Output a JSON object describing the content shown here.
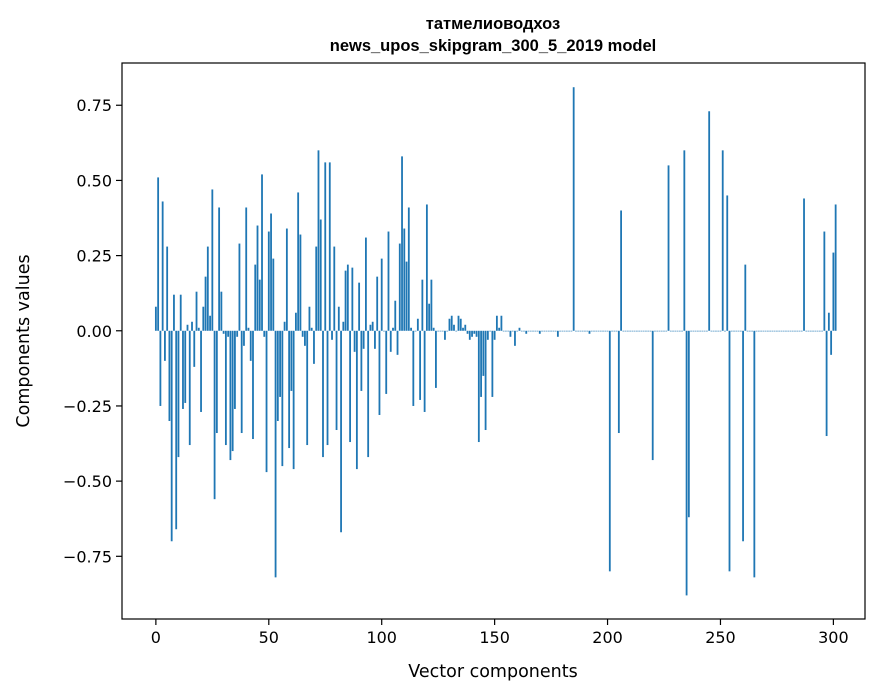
{
  "chart_data": {
    "type": "bar",
    "title_line1": "татмелиоводхоз",
    "title_line2": "news_upos_skipgram_300_5_2019 model",
    "xlabel": "Vector components",
    "ylabel": "Components values",
    "xlim": [
      -15,
      314
    ],
    "ylim": [
      -0.9585,
      0.8905
    ],
    "xticks": [
      0,
      50,
      100,
      150,
      200,
      250,
      300
    ],
    "xtick_labels": [
      "0",
      "50",
      "100",
      "150",
      "200",
      "250",
      "300"
    ],
    "yticks": [
      -0.75,
      -0.5,
      -0.25,
      0.0,
      0.25,
      0.5,
      0.75
    ],
    "ytick_labels": [
      "−0.75",
      "−0.50",
      "−0.25",
      "0.00",
      "0.25",
      "0.50",
      "0.75"
    ],
    "grid": false,
    "bar_color": "#1f77b4",
    "values": [
      0.08,
      0.51,
      -0.25,
      0.43,
      -0.1,
      0.28,
      -0.3,
      -0.7,
      0.12,
      -0.66,
      -0.42,
      0.12,
      -0.26,
      -0.24,
      0.02,
      -0.38,
      0.03,
      -0.12,
      0.13,
      0.01,
      -0.27,
      0.08,
      0.18,
      0.28,
      0.05,
      0.47,
      -0.56,
      -0.34,
      0.41,
      0.13,
      -0.01,
      -0.38,
      -0.02,
      -0.43,
      -0.4,
      -0.26,
      -0.02,
      0.29,
      -0.34,
      -0.05,
      0.41,
      0.01,
      -0.1,
      -0.36,
      0.22,
      0.35,
      0.17,
      0.52,
      -0.02,
      -0.47,
      0.33,
      0.39,
      0.24,
      -0.82,
      -0.3,
      -0.22,
      -0.45,
      0.03,
      0.34,
      -0.39,
      -0.2,
      -0.46,
      0.06,
      0.46,
      0.32,
      -0.02,
      -0.05,
      -0.38,
      0.08,
      0.01,
      -0.11,
      0.28,
      0.6,
      0.37,
      -0.42,
      0.56,
      -0.38,
      0.56,
      -0.03,
      0.28,
      -0.33,
      0.08,
      -0.67,
      0.03,
      0.2,
      0.22,
      -0.37,
      0.21,
      -0.07,
      -0.46,
      0.16,
      -0.2,
      -0.06,
      0.31,
      -0.42,
      0.02,
      0.03,
      -0.06,
      0.18,
      -0.28,
      0.24,
      0.0,
      -0.21,
      0.33,
      -0.07,
      0.01,
      0.1,
      -0.08,
      0.29,
      0.58,
      0.34,
      0.23,
      0.41,
      0.01,
      -0.25,
      0.0,
      0.04,
      -0.23,
      0.17,
      -0.27,
      0.42,
      0.09,
      0.17,
      0.01,
      -0.19,
      0.0,
      0.0,
      0.0,
      -0.03,
      0.0,
      0.04,
      0.05,
      0.02,
      0.0,
      0.05,
      0.04,
      0.01,
      0.02,
      -0.01,
      -0.03,
      -0.02,
      -0.01,
      -0.02,
      -0.37,
      -0.22,
      -0.15,
      -0.33,
      -0.03,
      0.0,
      -0.22,
      -0.03,
      0.05,
      0.01,
      0.05,
      0.0,
      0.0,
      0.0,
      -0.02,
      0.0,
      -0.05,
      0.0,
      0.01,
      0.0,
      0.0,
      -0.01,
      0.0,
      0.0,
      0.0,
      0.0,
      0.0,
      -0.01,
      0.0,
      0.0,
      0.0,
      0.0,
      0.0,
      0.0,
      0.0,
      -0.02,
      0.0,
      0.0,
      0.0,
      0.0,
      0.0,
      0.0,
      0.81,
      0.0,
      0.0,
      0.0,
      0.0,
      0.0,
      0.0,
      -0.01,
      0.0,
      0.0,
      0.0,
      0.0,
      0.0,
      0.0,
      0.0,
      0.0,
      -0.8,
      0.0,
      0.0,
      0.0,
      -0.34,
      0.4,
      0.0,
      0.0,
      0.0,
      0.0,
      0.0,
      0.0,
      0.0,
      0.0,
      0.0,
      0.0,
      0.0,
      0.0,
      0.0,
      -0.43,
      0.0,
      0.0,
      0.0,
      0.0,
      0.0,
      0.0,
      0.55,
      0.0,
      0.0,
      0.0,
      0.0,
      0.0,
      0.0,
      0.6,
      -0.88,
      -0.62,
      0.0,
      0.0,
      0.0,
      0.0,
      0.0,
      0.0,
      0.0,
      0.0,
      0.73,
      0.0,
      0.0,
      0.0,
      0.0,
      0.0,
      0.6,
      0.0,
      0.45,
      -0.8,
      0.0,
      0.0,
      0.0,
      0.0,
      0.0,
      -0.7,
      0.22,
      0.0,
      0.0,
      0.0,
      -0.82,
      0.0,
      0.0,
      0.0,
      0.0,
      0.0,
      0.0,
      0.0,
      0.0,
      0.0,
      0.0,
      0.0,
      0.0,
      0.0,
      0.0,
      0.0,
      0.0,
      0.0,
      0.0,
      0.0,
      0.0,
      0.0,
      0.44,
      0.0,
      0.0,
      0.0,
      0.0,
      0.0,
      0.0,
      0.0,
      0.0,
      0.33,
      -0.35,
      0.06,
      -0.08,
      0.26,
      0.42
    ]
  }
}
